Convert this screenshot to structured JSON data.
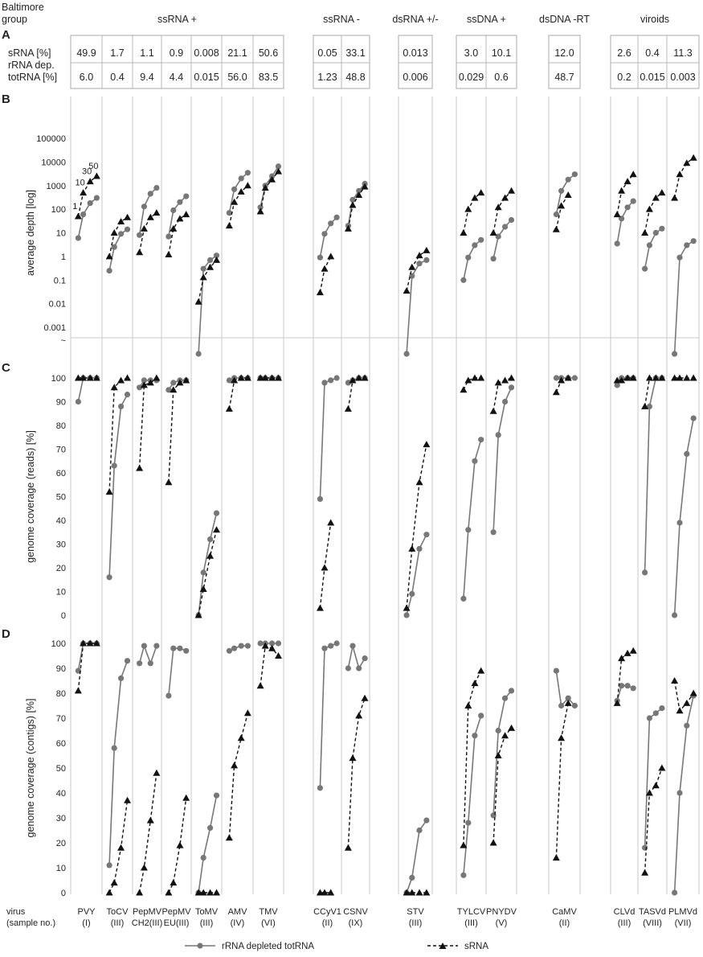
{
  "header": {
    "baltimore_label": [
      "Baltimore",
      "group"
    ],
    "groups": [
      {
        "label": "ssRNA +",
        "start": 0,
        "end": 6
      },
      {
        "label": "ssRNA -",
        "start": 7,
        "end": 8
      },
      {
        "label": "dsRNA +/-",
        "start": 9,
        "end": 9
      },
      {
        "label": "ssDNA +",
        "start": 10,
        "end": 11
      },
      {
        "label": "dsDNA -RT",
        "start": 12,
        "end": 12
      },
      {
        "label": "viroids",
        "start": 13,
        "end": 15
      }
    ]
  },
  "table": {
    "letter": "A",
    "row_labels": [
      [
        "sRNA [%]"
      ],
      [
        "rRNA dep.",
        "totRNA [%]"
      ]
    ],
    "srna": [
      "49.9",
      "1.7",
      "1.1",
      "0.9",
      "0.008",
      "21.1",
      "50.6",
      "0.05",
      "33.1",
      "0.013",
      "3.0",
      "10.1",
      "12.0",
      "2.6",
      "0.4",
      "11.3"
    ],
    "totrna": [
      "6.0",
      "0.4",
      "9.4",
      "4.4",
      "0.015",
      "56.0",
      "83.5",
      "1.23",
      "48.8",
      "0.006",
      "0.029",
      "0.6",
      "48.7",
      "0.2",
      "0.015",
      "0.003"
    ]
  },
  "x_axis": {
    "label": [
      "virus",
      "(sample no.)"
    ],
    "viruses": [
      {
        "name": "PVY",
        "group": "(I)"
      },
      {
        "name": "ToCV",
        "group": "(III)"
      },
      {
        "name": "PepMV",
        "group": "CH2(III)"
      },
      {
        "name": "PepMV",
        "group": "EU(III)"
      },
      {
        "name": "ToMV",
        "group": "(III)"
      },
      {
        "name": "AMV",
        "group": "(IV)"
      },
      {
        "name": "TMV",
        "group": "(VI)"
      },
      {
        "name": "CCyV1",
        "group": "(II)"
      },
      {
        "name": "CSNV",
        "group": "(IX)"
      },
      {
        "name": "STV",
        "group": "(III)"
      },
      {
        "name": "TYLCV",
        "group": "(III)"
      },
      {
        "name": "PNYDV",
        "group": "(V)"
      },
      {
        "name": "CaMV",
        "group": "(II)"
      },
      {
        "name": "CLVd",
        "group": "(III)"
      },
      {
        "name": "TASVd",
        "group": "(VIII)"
      },
      {
        "name": "PLMVd",
        "group": "(VII)"
      }
    ]
  },
  "legend": {
    "totrna": "rRNA depleted totRNA",
    "srna": "sRNA"
  },
  "colors": {
    "totrna": "#777777",
    "srna": "#111111",
    "grid": "#c8c8c8"
  },
  "chart_data": [
    {
      "type": "line",
      "letter": "B",
      "ylabel": "average depth [log]",
      "yscale": "log",
      "ylim": [
        0.001,
        100000
      ],
      "yticks": [
        "0.001",
        "0.01",
        "0.1",
        "1",
        "10",
        "100",
        "1000",
        "10000",
        "100000"
      ],
      "break_tick": "~",
      "point_labels": [
        "1",
        "10",
        "30",
        "50"
      ],
      "x": [
        "1",
        "10",
        "30",
        "50"
      ],
      "series": [
        {
          "name": "rRNA depleted totRNA",
          "values": [
            [
              6,
              60,
              180,
              300
            ],
            [
              0.25,
              2.5,
              9,
              14
            ],
            [
              8,
              130,
              450,
              800
            ],
            [
              7,
              90,
              200,
              350
            ],
            [
              0,
              0.3,
              0.7,
              1.1
            ],
            [
              70,
              700,
              2000,
              3500
            ],
            [
              120,
              1000,
              2500,
              6500
            ],
            [
              0.9,
              9,
              25,
              45
            ],
            [
              20,
              250,
              600,
              1200
            ],
            [
              0,
              0.15,
              0.5,
              0.7
            ],
            [
              0.1,
              0.9,
              3,
              5
            ],
            [
              0.8,
              7,
              18,
              35
            ],
            [
              60,
              600,
              1800,
              3000
            ],
            [
              3.5,
              40,
              120,
              220
            ],
            [
              0.3,
              3,
              10,
              15
            ],
            [
              0,
              0.9,
              3,
              4.5
            ]
          ]
        },
        {
          "name": "sRNA",
          "values": [
            [
              50,
              500,
              1500,
              2500
            ],
            [
              1,
              10,
              30,
              45
            ],
            [
              1.5,
              15,
              45,
              70
            ],
            [
              1.2,
              15,
              40,
              60
            ],
            [
              0.012,
              0.13,
              0.35,
              0.7
            ],
            [
              20,
              200,
              550,
              1000
            ],
            [
              80,
              800,
              1800,
              4000
            ],
            [
              0.03,
              0.3,
              1,
              null
            ],
            [
              15,
              150,
              400,
              900
            ],
            [
              0.035,
              0.35,
              1.1,
              1.8
            ],
            [
              10,
              100,
              300,
              500
            ],
            [
              10,
              120,
              300,
              600
            ],
            [
              14,
              140,
              400,
              null
            ],
            [
              60,
              600,
              1500,
              3000
            ],
            [
              10,
              100,
              300,
              500
            ],
            [
              300,
              3000,
              9000,
              15000
            ]
          ]
        }
      ]
    },
    {
      "type": "line",
      "letter": "C",
      "ylabel": "genome coverage (reads) [%]",
      "ylim": [
        0,
        100
      ],
      "yticks": [
        "0",
        "10",
        "20",
        "30",
        "40",
        "50",
        "60",
        "70",
        "80",
        "90",
        "100"
      ],
      "x": [
        "1",
        "10",
        "30",
        "50"
      ],
      "series": [
        {
          "name": "rRNA depleted totRNA",
          "values": [
            [
              90,
              100,
              100,
              100
            ],
            [
              16,
              63,
              88,
              93
            ],
            [
              96,
              99,
              99,
              99
            ],
            [
              95,
              98,
              99,
              99
            ],
            [
              0,
              18,
              32,
              43
            ],
            [
              99,
              100,
              100,
              100
            ],
            [
              100,
              100,
              100,
              100
            ],
            [
              49,
              98,
              99,
              100
            ],
            [
              98,
              99,
              100,
              100
            ],
            [
              0,
              9,
              28,
              34
            ],
            [
              7,
              36,
              65,
              74
            ],
            [
              35,
              76,
              90,
              96
            ],
            [
              100,
              100,
              100,
              100
            ],
            [
              97,
              100,
              100,
              100
            ],
            [
              18,
              88,
              100,
              100
            ],
            [
              0,
              39,
              68,
              83
            ]
          ]
        },
        {
          "name": "sRNA",
          "values": [
            [
              100,
              100,
              100,
              100
            ],
            [
              52,
              96,
              99,
              100
            ],
            [
              62,
              97,
              98,
              100
            ],
            [
              56,
              95,
              98,
              99
            ],
            [
              0,
              11,
              25,
              36
            ],
            [
              87,
              99,
              100,
              100
            ],
            [
              100,
              100,
              100,
              100
            ],
            [
              3,
              20,
              39,
              null
            ],
            [
              87,
              99,
              100,
              100
            ],
            [
              3,
              28,
              56,
              72
            ],
            [
              95,
              99,
              100,
              100
            ],
            [
              86,
              98,
              99,
              100
            ],
            [
              94,
              99,
              100,
              null
            ],
            [
              99,
              99,
              100,
              100
            ],
            [
              88,
              100,
              100,
              100
            ],
            [
              100,
              100,
              100,
              100
            ]
          ]
        }
      ]
    },
    {
      "type": "line",
      "letter": "D",
      "ylabel": "genome coverage (contigs) [%]",
      "ylim": [
        0,
        100
      ],
      "yticks": [
        "0",
        "10",
        "20",
        "30",
        "40",
        "50",
        "60",
        "70",
        "80",
        "90",
        "100"
      ],
      "x": [
        "1",
        "10",
        "30",
        "50"
      ],
      "series": [
        {
          "name": "rRNA depleted totRNA",
          "values": [
            [
              89,
              100,
              100,
              100
            ],
            [
              11,
              58,
              86,
              93
            ],
            [
              92,
              99,
              92,
              99
            ],
            [
              79,
              98,
              98,
              97
            ],
            [
              0,
              14,
              26,
              39
            ],
            [
              97,
              98,
              99,
              99
            ],
            [
              100,
              100,
              100,
              100
            ],
            [
              42,
              98,
              99,
              100
            ],
            [
              90,
              99,
              90,
              94
            ],
            [
              0,
              6,
              25,
              29
            ],
            [
              7,
              28,
              63,
              71
            ],
            [
              31,
              65,
              78,
              81
            ],
            [
              89,
              75,
              78,
              75
            ],
            [
              77,
              83,
              83,
              82
            ],
            [
              18,
              70,
              72,
              74
            ],
            [
              0,
              40,
              67,
              79
            ]
          ]
        },
        {
          "name": "sRNA",
          "values": [
            [
              81,
              100,
              100,
              100
            ],
            [
              0,
              4,
              18,
              37
            ],
            [
              0,
              10,
              29,
              48
            ],
            [
              0,
              4,
              19,
              38
            ],
            [
              0,
              0,
              0,
              0
            ],
            [
              22,
              51,
              62,
              72
            ],
            [
              83,
              99,
              98,
              95
            ],
            [
              0,
              0,
              0,
              null
            ],
            [
              18,
              54,
              71,
              78
            ],
            [
              0,
              0,
              0,
              0
            ],
            [
              19,
              75,
              84,
              89
            ],
            [
              20,
              55,
              63,
              66
            ],
            [
              14,
              62,
              76,
              null
            ],
            [
              76,
              94,
              96,
              97
            ],
            [
              8,
              40,
              43,
              50
            ],
            [
              85,
              73,
              76,
              80
            ]
          ]
        }
      ]
    }
  ]
}
